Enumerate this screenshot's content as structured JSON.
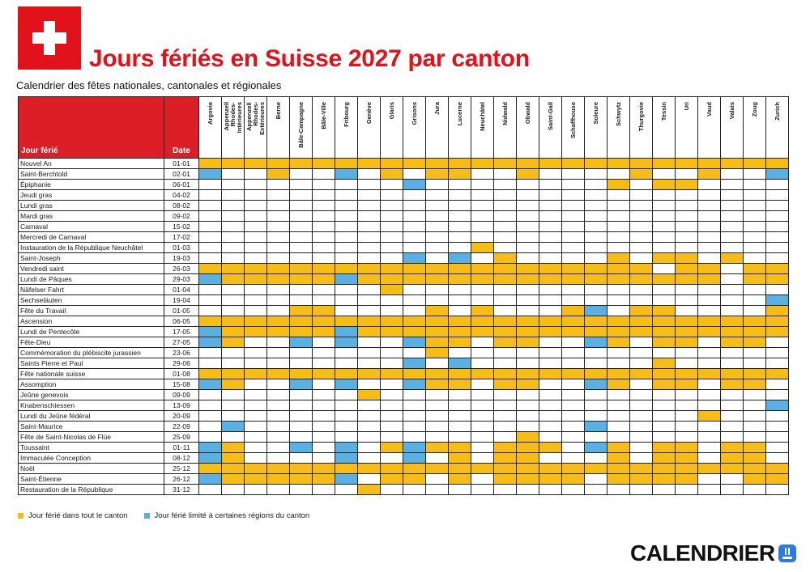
{
  "header": {
    "title": "Jours fériés en Suisse 2027 par canton",
    "subtitle": "Calendrier des fêtes nationales, cantonales et régionales",
    "flag_icon": "swiss-flag-icon"
  },
  "table": {
    "col_holiday": "Jour férié",
    "col_date": "Date",
    "cantons": [
      "Argovie",
      "Appenzell\nRhodes-\nIntérieures",
      "Appenzell\nRhodes-\nExtérieures",
      "Berne",
      "Bâle-Campagne",
      "Bâle-Ville",
      "Fribourg",
      "Genève",
      "Glaris",
      "Grisons",
      "Jura",
      "Lucerne",
      "Neuchâtel",
      "Nidwald",
      "Obwald",
      "Saint-Gall",
      "Schaffhouse",
      "Soleure",
      "Schwytz",
      "Thurgovie",
      "Tessin",
      "Uri",
      "Vaud",
      "Valais",
      "Zoug",
      "Zurich"
    ],
    "rows": [
      {
        "name": "Nouvel An",
        "date": "01-01",
        "cells": [
          1,
          1,
          1,
          1,
          1,
          1,
          1,
          1,
          1,
          1,
          1,
          1,
          1,
          1,
          1,
          1,
          1,
          1,
          1,
          1,
          1,
          1,
          1,
          1,
          1,
          1
        ]
      },
      {
        "name": "Saint-Berchtold",
        "date": "02-01",
        "cells": [
          2,
          0,
          0,
          1,
          0,
          0,
          2,
          0,
          1,
          0,
          1,
          1,
          0,
          0,
          1,
          0,
          0,
          0,
          0,
          1,
          0,
          0,
          1,
          0,
          0,
          2
        ]
      },
      {
        "name": "Épiphanie",
        "date": "06-01",
        "cells": [
          0,
          0,
          0,
          0,
          0,
          0,
          0,
          0,
          0,
          2,
          0,
          0,
          0,
          0,
          0,
          0,
          0,
          0,
          1,
          0,
          1,
          1,
          0,
          0,
          0,
          0
        ]
      },
      {
        "name": "Jeudi gras",
        "date": "04-02",
        "cells": [
          0,
          0,
          0,
          0,
          0,
          0,
          0,
          0,
          0,
          0,
          0,
          0,
          0,
          0,
          0,
          0,
          0,
          0,
          0,
          0,
          0,
          0,
          0,
          0,
          0,
          0
        ]
      },
      {
        "name": "Lundi gras",
        "date": "08-02",
        "cells": [
          0,
          0,
          0,
          0,
          0,
          0,
          0,
          0,
          0,
          0,
          0,
          0,
          0,
          0,
          0,
          0,
          0,
          0,
          0,
          0,
          0,
          0,
          0,
          0,
          0,
          0
        ]
      },
      {
        "name": "Mardi gras",
        "date": "09-02",
        "cells": [
          0,
          0,
          0,
          0,
          0,
          0,
          0,
          0,
          0,
          0,
          0,
          0,
          0,
          0,
          0,
          0,
          0,
          0,
          0,
          0,
          0,
          0,
          0,
          0,
          0,
          0
        ]
      },
      {
        "name": "Carnaval",
        "date": "15-02",
        "cells": [
          0,
          0,
          0,
          0,
          0,
          0,
          0,
          0,
          0,
          0,
          0,
          0,
          0,
          0,
          0,
          0,
          0,
          0,
          0,
          0,
          0,
          0,
          0,
          0,
          0,
          0
        ]
      },
      {
        "name": "Mercredi de Carnaval",
        "date": "17-02",
        "cells": [
          0,
          0,
          0,
          0,
          0,
          0,
          0,
          0,
          0,
          0,
          0,
          0,
          0,
          0,
          0,
          0,
          0,
          0,
          0,
          0,
          0,
          0,
          0,
          0,
          0,
          0
        ]
      },
      {
        "name": "Instauration de la République Neuchâtel",
        "date": "01-03",
        "cells": [
          0,
          0,
          0,
          0,
          0,
          0,
          0,
          0,
          0,
          0,
          0,
          0,
          1,
          0,
          0,
          0,
          0,
          0,
          0,
          0,
          0,
          0,
          0,
          0,
          0,
          0
        ]
      },
      {
        "name": "Saint-Joseph",
        "date": "19-03",
        "cells": [
          0,
          0,
          0,
          0,
          0,
          0,
          0,
          0,
          0,
          2,
          0,
          2,
          0,
          1,
          0,
          0,
          0,
          0,
          1,
          0,
          1,
          1,
          0,
          1,
          0,
          0
        ]
      },
      {
        "name": "Vendredi saint",
        "date": "26-03",
        "cells": [
          1,
          1,
          1,
          1,
          1,
          1,
          1,
          1,
          1,
          1,
          1,
          1,
          1,
          1,
          1,
          1,
          1,
          1,
          1,
          1,
          0,
          1,
          1,
          0,
          1,
          1
        ]
      },
      {
        "name": "Lundi de Pâques",
        "date": "29-03",
        "cells": [
          2,
          1,
          1,
          1,
          1,
          1,
          2,
          1,
          1,
          1,
          1,
          1,
          1,
          1,
          1,
          1,
          1,
          1,
          1,
          1,
          1,
          1,
          1,
          0,
          1,
          1
        ]
      },
      {
        "name": "Näfelser Fahrt",
        "date": "01-04",
        "cells": [
          0,
          0,
          0,
          0,
          0,
          0,
          0,
          0,
          1,
          0,
          0,
          0,
          0,
          0,
          0,
          0,
          0,
          0,
          0,
          0,
          0,
          0,
          0,
          0,
          0,
          0
        ]
      },
      {
        "name": "Sechseläuten",
        "date": "19-04",
        "cells": [
          0,
          0,
          0,
          0,
          0,
          0,
          0,
          0,
          0,
          0,
          0,
          0,
          0,
          0,
          0,
          0,
          0,
          0,
          0,
          0,
          0,
          0,
          0,
          0,
          0,
          2
        ]
      },
      {
        "name": "Fête du Travail",
        "date": "01-05",
        "cells": [
          0,
          0,
          0,
          0,
          1,
          1,
          0,
          0,
          0,
          0,
          1,
          0,
          1,
          0,
          0,
          0,
          1,
          2,
          0,
          1,
          1,
          0,
          0,
          0,
          0,
          1
        ]
      },
      {
        "name": "Ascension",
        "date": "06-05",
        "cells": [
          1,
          1,
          1,
          1,
          1,
          1,
          1,
          1,
          1,
          1,
          1,
          1,
          1,
          1,
          1,
          1,
          1,
          1,
          1,
          1,
          1,
          1,
          1,
          1,
          1,
          1
        ]
      },
      {
        "name": "Lundi de Pentecôte",
        "date": "17-05",
        "cells": [
          2,
          1,
          1,
          1,
          1,
          1,
          2,
          1,
          1,
          1,
          1,
          1,
          1,
          1,
          1,
          1,
          1,
          1,
          1,
          1,
          1,
          1,
          1,
          1,
          1,
          1
        ]
      },
      {
        "name": "Fête-Dieu",
        "date": "27-05",
        "cells": [
          2,
          1,
          0,
          0,
          2,
          0,
          2,
          0,
          0,
          2,
          1,
          1,
          0,
          1,
          1,
          0,
          0,
          2,
          1,
          0,
          1,
          1,
          0,
          1,
          1,
          0
        ]
      },
      {
        "name": "Commémoration du plébiscite jurassien",
        "date": "23-06",
        "cells": [
          0,
          0,
          0,
          0,
          0,
          0,
          0,
          0,
          0,
          0,
          1,
          0,
          0,
          0,
          0,
          0,
          0,
          0,
          0,
          0,
          0,
          0,
          0,
          0,
          0,
          0
        ]
      },
      {
        "name": "Saints Pierre et Paul",
        "date": "29-06",
        "cells": [
          0,
          0,
          0,
          0,
          0,
          0,
          0,
          0,
          0,
          2,
          0,
          2,
          0,
          0,
          0,
          0,
          0,
          0,
          0,
          0,
          1,
          0,
          0,
          0,
          0,
          0
        ]
      },
      {
        "name": "Fête nationale suisse",
        "date": "01-08",
        "cells": [
          1,
          1,
          1,
          1,
          1,
          1,
          1,
          1,
          1,
          1,
          1,
          1,
          1,
          1,
          1,
          1,
          1,
          1,
          1,
          1,
          1,
          1,
          1,
          1,
          1,
          1
        ]
      },
      {
        "name": "Assomption",
        "date": "15-08",
        "cells": [
          2,
          1,
          0,
          0,
          2,
          0,
          2,
          0,
          0,
          2,
          1,
          1,
          0,
          1,
          1,
          0,
          0,
          2,
          1,
          0,
          1,
          1,
          0,
          1,
          1,
          0
        ]
      },
      {
        "name": "Jeûne genevois",
        "date": "09-09",
        "cells": [
          0,
          0,
          0,
          0,
          0,
          0,
          0,
          1,
          0,
          0,
          0,
          0,
          0,
          0,
          0,
          0,
          0,
          0,
          0,
          0,
          0,
          0,
          0,
          0,
          0,
          0
        ]
      },
      {
        "name": "Knabenschiessen",
        "date": "13-09",
        "cells": [
          0,
          0,
          0,
          0,
          0,
          0,
          0,
          0,
          0,
          0,
          0,
          0,
          0,
          0,
          0,
          0,
          0,
          0,
          0,
          0,
          0,
          0,
          0,
          0,
          0,
          2
        ]
      },
      {
        "name": "Lundi du Jeûne fédéral",
        "date": "20-09",
        "cells": [
          0,
          0,
          0,
          0,
          0,
          0,
          0,
          0,
          0,
          0,
          0,
          0,
          0,
          0,
          0,
          0,
          0,
          0,
          0,
          0,
          0,
          0,
          1,
          0,
          0,
          0
        ]
      },
      {
        "name": "Saint-Maurice",
        "date": "22-09",
        "cells": [
          0,
          2,
          0,
          0,
          0,
          0,
          0,
          0,
          0,
          0,
          0,
          0,
          0,
          0,
          0,
          0,
          0,
          2,
          0,
          0,
          0,
          0,
          0,
          0,
          0,
          0
        ]
      },
      {
        "name": "Fête de Saint-Nicolas de Flüe",
        "date": "25-09",
        "cells": [
          0,
          0,
          0,
          0,
          0,
          0,
          0,
          0,
          0,
          0,
          0,
          0,
          0,
          0,
          1,
          0,
          0,
          0,
          0,
          0,
          0,
          0,
          0,
          0,
          0,
          0
        ]
      },
      {
        "name": "Toussaint",
        "date": "01-11",
        "cells": [
          2,
          1,
          0,
          0,
          2,
          0,
          2,
          0,
          1,
          2,
          1,
          1,
          0,
          1,
          1,
          1,
          0,
          2,
          1,
          0,
          1,
          1,
          0,
          1,
          1,
          0
        ]
      },
      {
        "name": "Immaculée Conception",
        "date": "08-12",
        "cells": [
          2,
          1,
          0,
          0,
          0,
          0,
          2,
          0,
          0,
          2,
          0,
          1,
          0,
          1,
          1,
          0,
          0,
          0,
          1,
          0,
          1,
          1,
          0,
          1,
          1,
          0
        ]
      },
      {
        "name": "Noël",
        "date": "25-12",
        "cells": [
          1,
          1,
          1,
          1,
          1,
          1,
          1,
          1,
          1,
          1,
          1,
          1,
          1,
          1,
          1,
          1,
          1,
          1,
          1,
          1,
          1,
          1,
          1,
          1,
          1,
          1
        ]
      },
      {
        "name": "Saint-Étienne",
        "date": "26-12",
        "cells": [
          2,
          1,
          1,
          1,
          1,
          1,
          2,
          0,
          1,
          1,
          0,
          1,
          0,
          1,
          1,
          1,
          1,
          0,
          1,
          1,
          1,
          1,
          0,
          0,
          1,
          1
        ]
      },
      {
        "name": "Restauration de la République",
        "date": "31-12",
        "cells": [
          0,
          0,
          0,
          0,
          0,
          0,
          0,
          1,
          0,
          0,
          0,
          0,
          0,
          0,
          0,
          0,
          0,
          0,
          0,
          0,
          0,
          0,
          0,
          0,
          0,
          0
        ]
      }
    ]
  },
  "legend": {
    "full_label": "Jour férié dans tout le canton",
    "partial_label": "Jour férié limité à certaines régions du canton",
    "full_color": "#f6bd16",
    "partial_color": "#5ab0e3"
  },
  "brand": {
    "name": "CALENDRIER",
    "logo_icon": "download-calendar-icon"
  }
}
